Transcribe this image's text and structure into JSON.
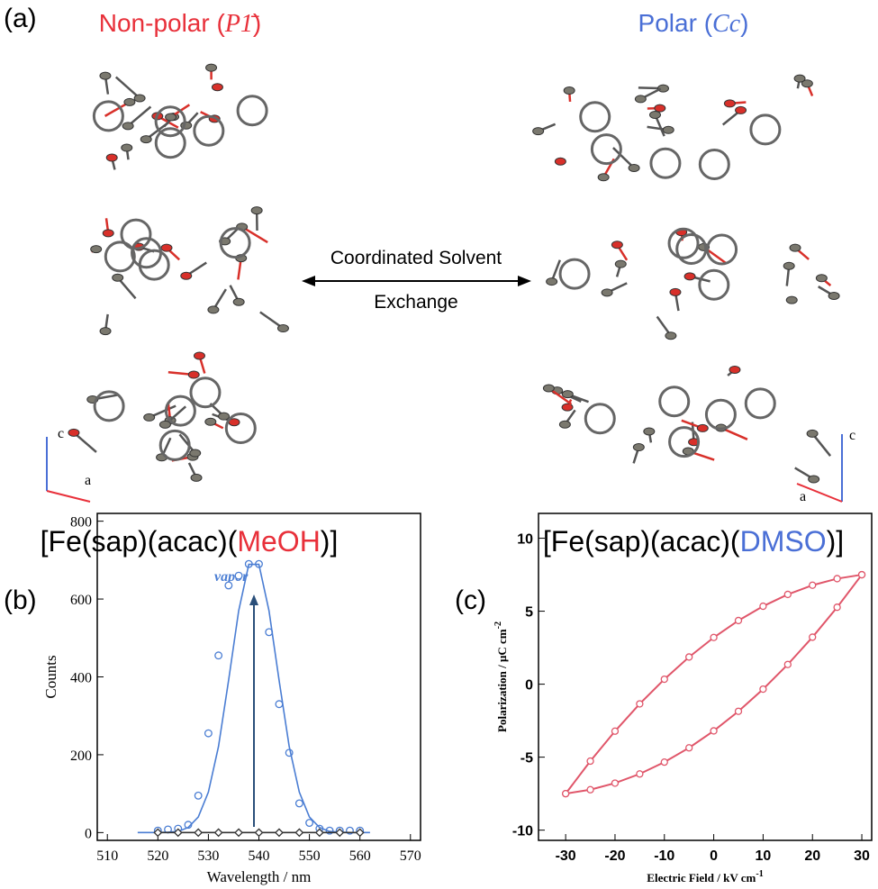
{
  "panel_a": {
    "label": "(a)",
    "left_title": {
      "text": "Non-polar (",
      "symbol": "P1̄",
      "close": ")"
    },
    "right_title": {
      "text": "Polar (",
      "symbol": "Cc",
      "close": ")"
    },
    "arrow_text": [
      "Coordinated Solvent",
      "Exchange"
    ],
    "left_axes": [
      "c",
      "a"
    ],
    "right_axes": [
      "c",
      "a"
    ],
    "left_formula": {
      "pre": "[Fe(sap)(acac)(",
      "solvent": "MeOH",
      "post": ")]"
    },
    "right_formula": {
      "pre": "[Fe(sap)(acac)(",
      "solvent": "DMSO",
      "post": ")]"
    }
  },
  "chart_data": [
    {
      "type": "line",
      "label": "(b)",
      "xlabel": "Wavelength / nm",
      "ylabel": "Counts",
      "annotation": "vapor",
      "xlim": [
        508,
        572
      ],
      "xticks": [
        510,
        520,
        530,
        540,
        550,
        560,
        570
      ],
      "ylim": [
        -20,
        820
      ],
      "yticks": [
        0,
        200,
        400,
        600,
        800
      ],
      "series": [
        {
          "color": "#4a7dd3",
          "marker": "circle",
          "line": false,
          "x": [
            520,
            522,
            524,
            526,
            528,
            530,
            532,
            534,
            536,
            538,
            540,
            542,
            544,
            546,
            548,
            550,
            552,
            554,
            556,
            558,
            560
          ],
          "values": [
            5,
            8,
            10,
            20,
            95,
            255,
            455,
            635,
            660,
            690,
            690,
            515,
            330,
            205,
            75,
            25,
            10,
            5,
            5,
            5,
            5
          ]
        },
        {
          "color": "#4a7dd3",
          "marker": "none",
          "line": true,
          "x": [
            516,
            518,
            520,
            522,
            524,
            526,
            528,
            530,
            532,
            534,
            536,
            538,
            540,
            542,
            544,
            546,
            548,
            550,
            552,
            554,
            556,
            558,
            560,
            562
          ],
          "values": [
            0,
            0,
            0,
            1,
            3,
            13,
            40,
            104,
            221,
            391,
            570,
            689,
            689,
            570,
            391,
            221,
            104,
            40,
            13,
            3,
            1,
            0,
            0,
            0
          ]
        },
        {
          "color": "#333333",
          "marker": "diamond",
          "line": true,
          "x": [
            520,
            524,
            528,
            532,
            536,
            540,
            544,
            548,
            552,
            556,
            560
          ],
          "values": [
            0,
            0,
            0,
            0,
            0,
            0,
            0,
            0,
            0,
            0,
            0
          ]
        }
      ]
    },
    {
      "type": "scatter",
      "label": "(c)",
      "xlabel": "Electric Field / kV cm",
      "xlabel_sup": "-1",
      "ylabel": "Polarization / μC cm",
      "ylabel_sup": "-2",
      "xlim": [
        -35.5,
        32
      ],
      "xticks": [
        -30,
        -20,
        -10,
        0,
        10,
        20,
        30
      ],
      "ylim": [
        -10.7,
        11.7
      ],
      "yticks": [
        -10,
        -5,
        0,
        5,
        10
      ],
      "series": [
        {
          "color": "#e0566a",
          "marker": "circle",
          "line": true,
          "x": [
            -30,
            -25,
            -20,
            -15,
            -10,
            -5,
            0,
            5,
            10,
            15,
            20,
            25,
            30
          ],
          "values": [
            -7.5,
            -5.27,
            -3.22,
            -1.35,
            0.34,
            1.86,
            3.2,
            4.36,
            5.34,
            6.15,
            6.78,
            7.23,
            7.5
          ]
        },
        {
          "color": "#e0566a",
          "marker": "circle",
          "line": true,
          "x": [
            30,
            25,
            20,
            15,
            10,
            5,
            0,
            -5,
            -10,
            -15,
            -20,
            -25,
            -30
          ],
          "values": [
            7.5,
            5.27,
            3.22,
            1.35,
            -0.34,
            -1.86,
            -3.2,
            -4.36,
            -5.34,
            -6.15,
            -6.78,
            -7.23,
            -7.5
          ]
        }
      ]
    }
  ]
}
